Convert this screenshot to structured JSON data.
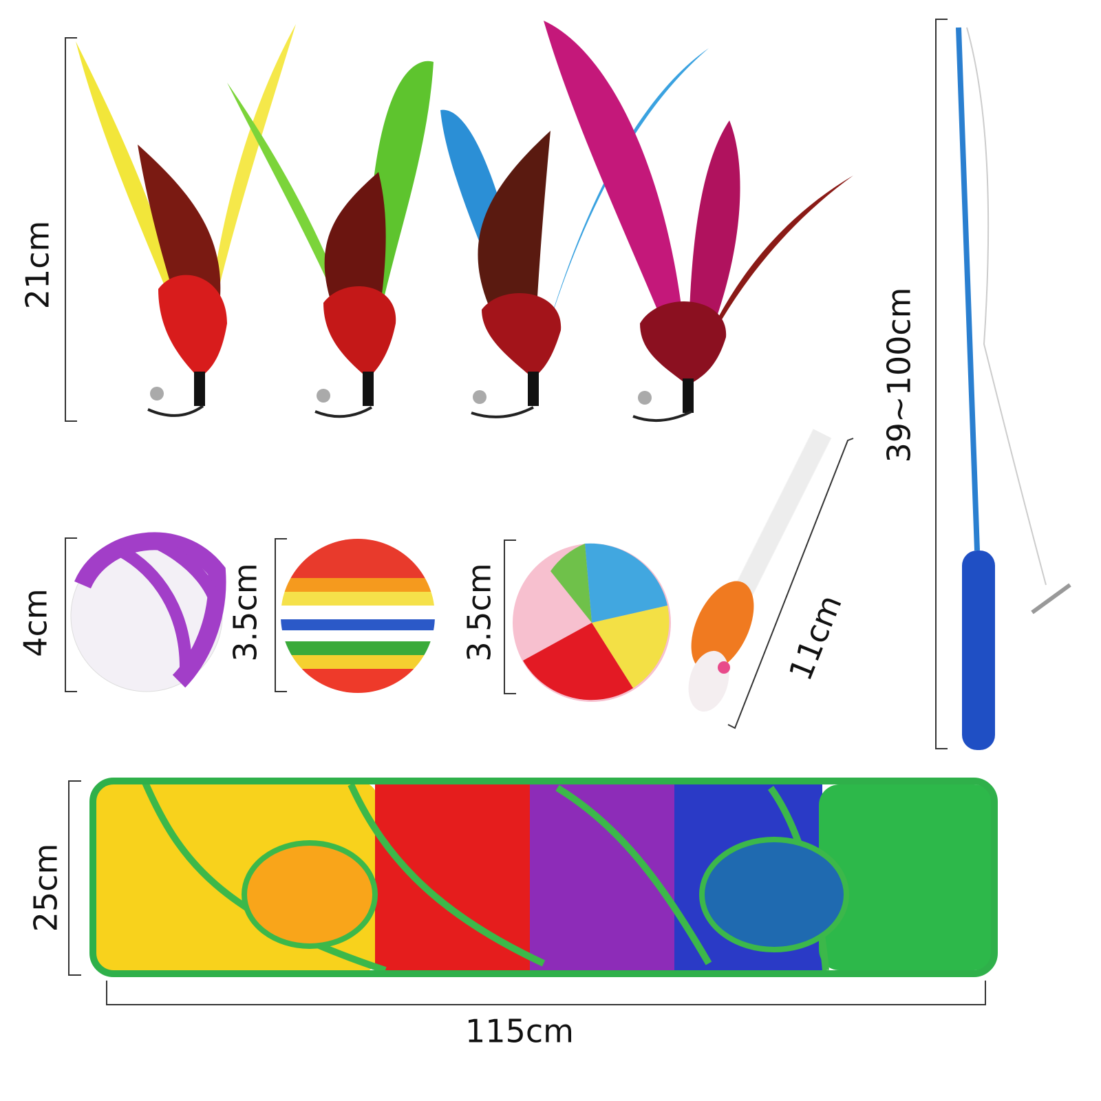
{
  "labels": {
    "feathers": "21cm",
    "wand": "39~100cm",
    "bell_ball": "4cm",
    "rainbow_ball": "3.5cm",
    "pompom": "3.5cm",
    "mouse": "11cm",
    "tunnel_height": "25cm",
    "tunnel_length": "115cm"
  }
}
